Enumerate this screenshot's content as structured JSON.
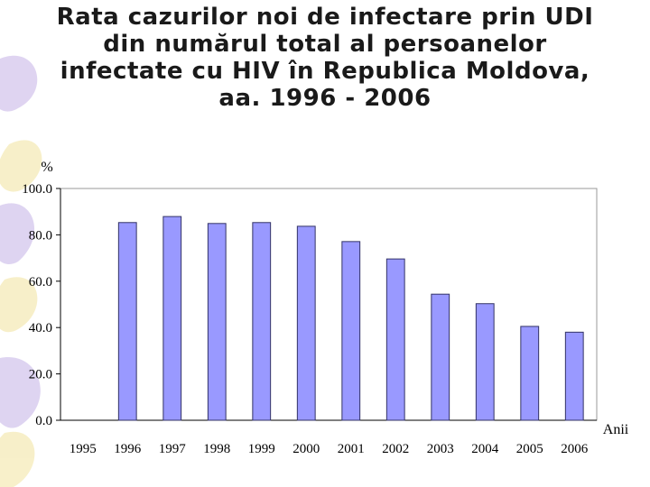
{
  "slide": {
    "title_lines": [
      "Rata cazurilor noi de infectare prin UDI",
      "din numărul total al persoanelor",
      "infectate cu HIV în Republica Moldova,",
      "aa. 1996 - 2006"
    ]
  },
  "colors": {
    "bar_fill": "#9999ff",
    "bar_stroke": "#333366",
    "plot_border": "#9a9a9a",
    "decor_primary": "#c9b8e8",
    "decor_secondary": "#f3e6a6"
  },
  "chart_data": {
    "type": "bar",
    "title": "",
    "ylabel": "%",
    "xlabel": "Anii",
    "ylim": [
      0,
      100
    ],
    "yticks": [
      0,
      20,
      40,
      60,
      80,
      100
    ],
    "ytick_labels": [
      "0.0",
      "20.0",
      "40.0",
      "60.0",
      "80.0",
      "100.0"
    ],
    "grid": false,
    "categories": [
      "1995",
      "1996",
      "1997",
      "1998",
      "1999",
      "2000",
      "2001",
      "2002",
      "2003",
      "2004",
      "2005",
      "2006"
    ],
    "values": [
      null,
      85.3,
      87.9,
      84.9,
      85.3,
      83.7,
      77.1,
      69.6,
      54.4,
      50.3,
      40.5,
      38.0
    ]
  }
}
